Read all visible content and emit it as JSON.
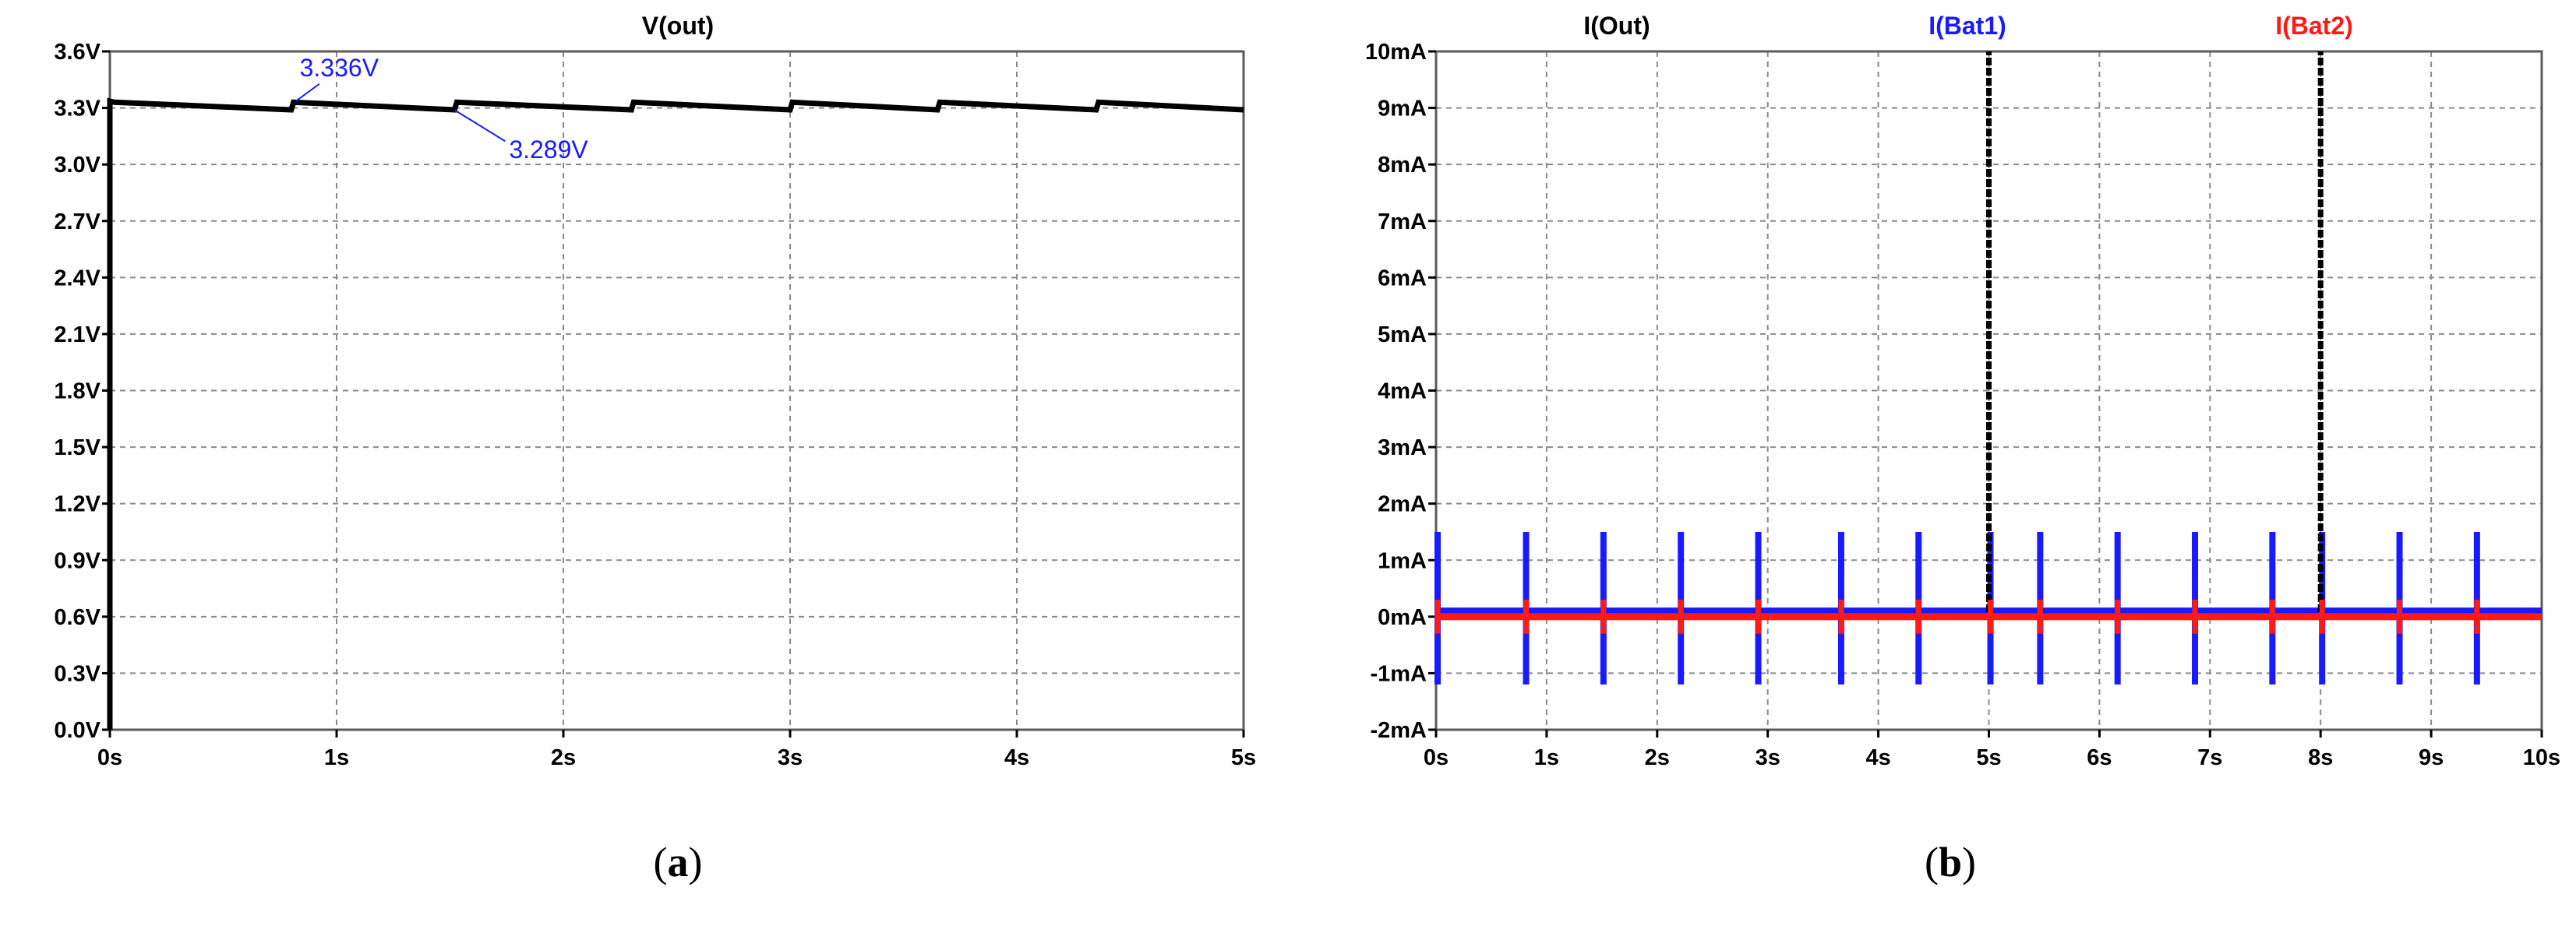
{
  "chart_data": [
    {
      "panel": "a",
      "type": "line",
      "title": "V(out)",
      "caption": {
        "open": "(",
        "letter": "a",
        "close": ")"
      },
      "xlim": [
        0,
        5
      ],
      "ylim": [
        0,
        3.6
      ],
      "x_ticks": [
        0,
        1,
        2,
        3,
        4,
        5
      ],
      "x_tick_labels": [
        "0s",
        "1s",
        "2s",
        "3s",
        "4s",
        "5s"
      ],
      "y_ticks": [
        0,
        0.3,
        0.6,
        0.9,
        1.2,
        1.5,
        1.8,
        2.1,
        2.4,
        2.7,
        3.0,
        3.3,
        3.6
      ],
      "y_tick_labels": [
        "0.0V",
        "0.3V",
        "0.6V",
        "0.9V",
        "1.2V",
        "1.5V",
        "1.8V",
        "2.1V",
        "2.4V",
        "2.7V",
        "3.0V",
        "3.3V",
        "3.6V"
      ],
      "grid": true,
      "series": [
        {
          "name": "V(out)",
          "color": "#000000",
          "x": [
            0,
            0,
            0.02,
            0.8,
            0.81,
            1.52,
            1.53,
            2.3,
            2.31,
            3.0,
            3.01,
            3.65,
            3.66,
            4.35,
            4.36,
            5.0
          ],
          "y": [
            0,
            3.336,
            3.33,
            3.29,
            3.33,
            3.29,
            3.33,
            3.29,
            3.33,
            3.29,
            3.33,
            3.29,
            3.33,
            3.29,
            3.33,
            3.29
          ]
        }
      ],
      "annotations": [
        {
          "text": "3.336V",
          "x": 0.82,
          "y": 3.336,
          "color": "#1a1aff"
        },
        {
          "text": "3.289V",
          "x": 1.52,
          "y": 3.289,
          "color": "#1a1aff"
        }
      ]
    },
    {
      "panel": "b",
      "type": "line",
      "caption": {
        "open": "(",
        "letter": "b",
        "close": ")"
      },
      "xlim": [
        0,
        10
      ],
      "ylim": [
        -2,
        10
      ],
      "x_ticks": [
        0,
        1,
        2,
        3,
        4,
        5,
        6,
        7,
        8,
        9,
        10
      ],
      "x_tick_labels": [
        "0s",
        "1s",
        "2s",
        "3s",
        "4s",
        "5s",
        "6s",
        "7s",
        "8s",
        "9s",
        "10s"
      ],
      "y_ticks": [
        -2,
        -1,
        0,
        1,
        2,
        3,
        4,
        5,
        6,
        7,
        8,
        9,
        10
      ],
      "y_tick_labels": [
        "-2mA",
        "-1mA",
        "0mA",
        "1mA",
        "2mA",
        "3mA",
        "4mA",
        "5mA",
        "6mA",
        "7mA",
        "8mA",
        "9mA",
        "10mA"
      ],
      "grid": true,
      "series": [
        {
          "name": "I(Out)",
          "color": "#000000",
          "baseline": 0.08,
          "spikes": [
            {
              "x": 5.0,
              "peak": 10
            },
            {
              "x": 8.0,
              "peak": 10
            }
          ]
        },
        {
          "name": "I(Bat1)",
          "color": "#1a1aff",
          "baseline": 0.1,
          "pulse_range": [
            -1.2,
            1.5
          ],
          "pulse_x": [
            0,
            0.8,
            1.5,
            2.2,
            2.9,
            3.65,
            4.35,
            5.0,
            5.45,
            6.15,
            6.85,
            7.55,
            8.0,
            8.7,
            9.4
          ]
        },
        {
          "name": "I(Bat2)",
          "color": "#ff1a1a",
          "baseline": 0.0,
          "pulse_range": [
            -0.3,
            0.3
          ],
          "pulse_x": [
            0,
            0.8,
            1.5,
            2.2,
            2.9,
            3.65,
            4.35,
            5.0,
            5.45,
            6.15,
            6.85,
            7.55,
            8.0,
            8.7,
            9.4
          ]
        }
      ]
    }
  ]
}
